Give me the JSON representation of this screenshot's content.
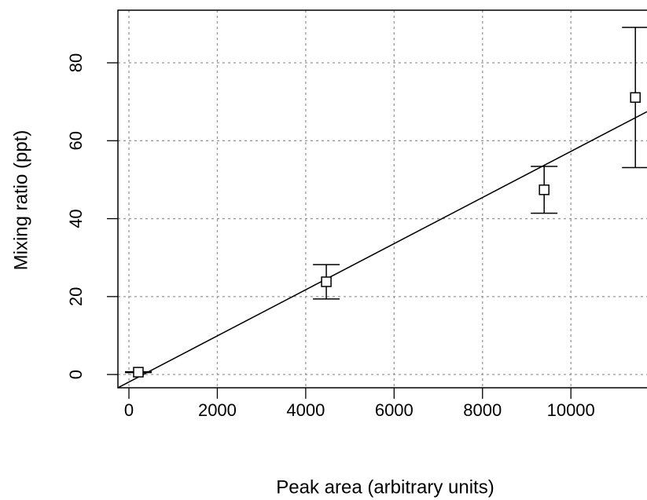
{
  "chart_data": {
    "type": "scatter",
    "x_label": "Peak area (arbitrary units)",
    "y_label": "Mixing ratio (ppt)",
    "x": [
      213,
      4466,
      9395,
      11459
    ],
    "values": [
      0.6,
      23.8,
      47.4,
      71.1
    ],
    "errors": [
      0.1,
      4.4,
      6,
      18
    ],
    "fit": {
      "slope": 0.00592,
      "intercept": -1.93
    },
    "xlim": [
      -249,
      11722
    ],
    "ylim": [
      -3.4,
      93.5
    ],
    "xticks": [
      0,
      2000,
      4000,
      6000,
      8000,
      10000
    ],
    "yticks": [
      0,
      20,
      40,
      60,
      80
    ],
    "grid": true,
    "color": "#000000"
  }
}
